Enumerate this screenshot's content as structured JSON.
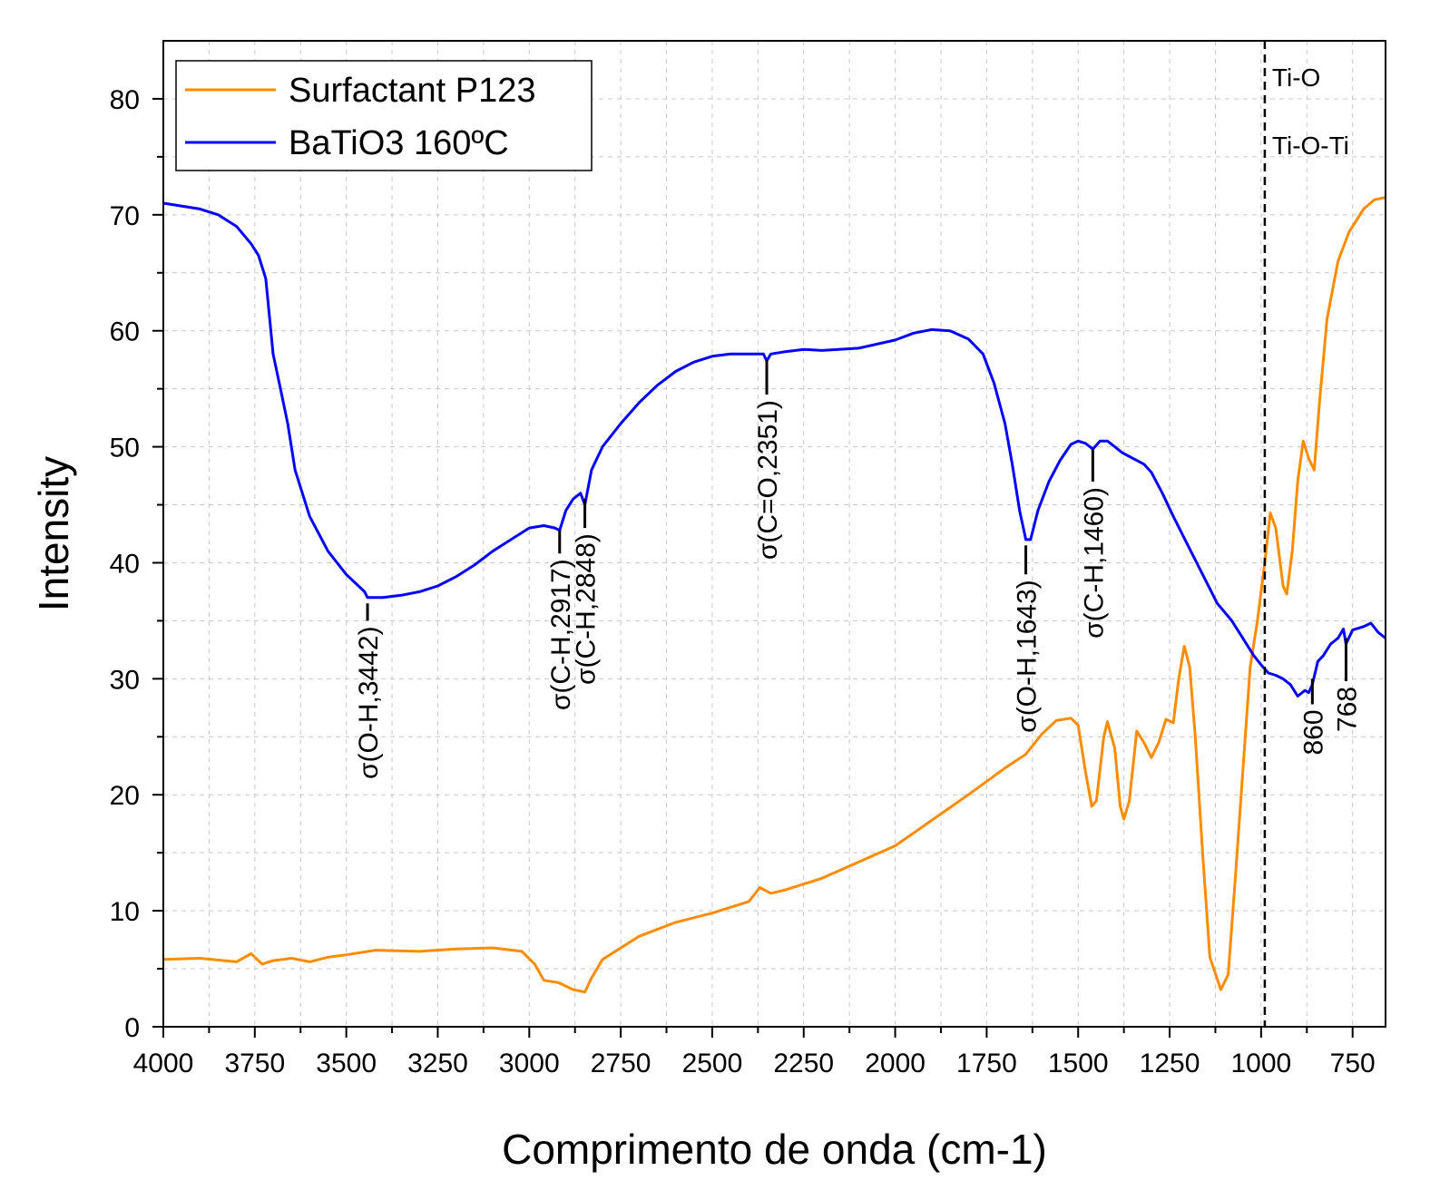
{
  "chart_data": {
    "type": "line",
    "title": "",
    "xlabel": "Comprimento de onda (cm-1)",
    "ylabel": "Intensity",
    "xlim": [
      4000,
      660
    ],
    "ylim": [
      0,
      85
    ],
    "xticks": [
      4000,
      3750,
      3500,
      3250,
      3000,
      2750,
      2500,
      2250,
      2000,
      1750,
      1500,
      1250,
      1000,
      750
    ],
    "xtick_labels": [
      "4000",
      "3750",
      "3500",
      "3250",
      "3000",
      "2750",
      "2500",
      "2250",
      "2000",
      "1750",
      "1500",
      "1250",
      "1000",
      "750"
    ],
    "yticks": [
      0,
      10,
      20,
      30,
      40,
      50,
      60,
      70,
      80
    ],
    "ytick_labels": [
      "0",
      "10",
      "20",
      "30",
      "40",
      "50",
      "60",
      "70",
      "80"
    ],
    "grid": true,
    "legend_position": "top-left",
    "series": [
      {
        "name": "Surfactant P123",
        "color": "#ff8c00",
        "points": [
          [
            4000,
            5.8
          ],
          [
            3900,
            5.9
          ],
          [
            3800,
            5.6
          ],
          [
            3760,
            6.3
          ],
          [
            3730,
            5.4
          ],
          [
            3700,
            5.7
          ],
          [
            3650,
            5.9
          ],
          [
            3600,
            5.6
          ],
          [
            3550,
            6.0
          ],
          [
            3500,
            6.2
          ],
          [
            3420,
            6.6
          ],
          [
            3300,
            6.5
          ],
          [
            3200,
            6.7
          ],
          [
            3100,
            6.8
          ],
          [
            3020,
            6.5
          ],
          [
            2985,
            5.4
          ],
          [
            2960,
            4.0
          ],
          [
            2920,
            3.8
          ],
          [
            2880,
            3.2
          ],
          [
            2848,
            3.0
          ],
          [
            2830,
            4.2
          ],
          [
            2800,
            5.8
          ],
          [
            2700,
            7.8
          ],
          [
            2600,
            9.0
          ],
          [
            2500,
            9.8
          ],
          [
            2400,
            10.8
          ],
          [
            2370,
            12.0
          ],
          [
            2340,
            11.5
          ],
          [
            2300,
            11.8
          ],
          [
            2200,
            12.8
          ],
          [
            2100,
            14.2
          ],
          [
            2000,
            15.6
          ],
          [
            1900,
            17.8
          ],
          [
            1800,
            20.0
          ],
          [
            1700,
            22.3
          ],
          [
            1643,
            23.5
          ],
          [
            1600,
            25.2
          ],
          [
            1560,
            26.4
          ],
          [
            1520,
            26.6
          ],
          [
            1500,
            26.0
          ],
          [
            1480,
            22.0
          ],
          [
            1463,
            19.0
          ],
          [
            1450,
            19.5
          ],
          [
            1430,
            25.0
          ],
          [
            1420,
            26.3
          ],
          [
            1400,
            24.0
          ],
          [
            1385,
            19.0
          ],
          [
            1375,
            17.9
          ],
          [
            1360,
            19.5
          ],
          [
            1340,
            25.5
          ],
          [
            1320,
            24.5
          ],
          [
            1300,
            23.2
          ],
          [
            1280,
            24.5
          ],
          [
            1260,
            26.5
          ],
          [
            1240,
            26.2
          ],
          [
            1225,
            30.0
          ],
          [
            1210,
            32.8
          ],
          [
            1195,
            31.0
          ],
          [
            1180,
            25.0
          ],
          [
            1160,
            15.0
          ],
          [
            1140,
            6.0
          ],
          [
            1110,
            3.2
          ],
          [
            1090,
            4.5
          ],
          [
            1070,
            13.0
          ],
          [
            1050,
            22.0
          ],
          [
            1030,
            31.0
          ],
          [
            1010,
            35.0
          ],
          [
            990,
            40.0
          ],
          [
            975,
            44.3
          ],
          [
            960,
            43.0
          ],
          [
            940,
            38.0
          ],
          [
            930,
            37.3
          ],
          [
            915,
            41.0
          ],
          [
            900,
            47.0
          ],
          [
            885,
            50.5
          ],
          [
            870,
            49.0
          ],
          [
            855,
            48.0
          ],
          [
            840,
            54.0
          ],
          [
            820,
            61.0
          ],
          [
            790,
            66.0
          ],
          [
            760,
            68.5
          ],
          [
            720,
            70.5
          ],
          [
            690,
            71.3
          ],
          [
            660,
            71.5
          ]
        ]
      },
      {
        "name": "BaTiO3 160ºC",
        "color": "#0000ff",
        "points": [
          [
            4000,
            71.0
          ],
          [
            3900,
            70.5
          ],
          [
            3850,
            70.0
          ],
          [
            3800,
            69.0
          ],
          [
            3760,
            67.5
          ],
          [
            3740,
            66.5
          ],
          [
            3720,
            64.5
          ],
          [
            3700,
            58.0
          ],
          [
            3680,
            55.0
          ],
          [
            3660,
            52.0
          ],
          [
            3640,
            48.0
          ],
          [
            3600,
            44.0
          ],
          [
            3550,
            41.0
          ],
          [
            3500,
            39.0
          ],
          [
            3450,
            37.5
          ],
          [
            3442,
            37.0
          ],
          [
            3400,
            37.0
          ],
          [
            3350,
            37.2
          ],
          [
            3300,
            37.5
          ],
          [
            3250,
            38.0
          ],
          [
            3200,
            38.8
          ],
          [
            3150,
            39.8
          ],
          [
            3100,
            41.0
          ],
          [
            3050,
            42.0
          ],
          [
            3000,
            43.0
          ],
          [
            2960,
            43.2
          ],
          [
            2930,
            43.0
          ],
          [
            2917,
            42.8
          ],
          [
            2900,
            44.5
          ],
          [
            2880,
            45.5
          ],
          [
            2860,
            46.0
          ],
          [
            2848,
            45.0
          ],
          [
            2830,
            48.0
          ],
          [
            2800,
            50.0
          ],
          [
            2750,
            52.0
          ],
          [
            2700,
            53.8
          ],
          [
            2650,
            55.3
          ],
          [
            2600,
            56.5
          ],
          [
            2550,
            57.3
          ],
          [
            2500,
            57.8
          ],
          [
            2450,
            58.0
          ],
          [
            2400,
            58.0
          ],
          [
            2360,
            58.0
          ],
          [
            2351,
            57.4
          ],
          [
            2340,
            58.0
          ],
          [
            2300,
            58.2
          ],
          [
            2250,
            58.4
          ],
          [
            2200,
            58.3
          ],
          [
            2100,
            58.5
          ],
          [
            2000,
            59.2
          ],
          [
            1950,
            59.8
          ],
          [
            1900,
            60.1
          ],
          [
            1850,
            60.0
          ],
          [
            1800,
            59.3
          ],
          [
            1760,
            58.0
          ],
          [
            1730,
            55.5
          ],
          [
            1700,
            52.0
          ],
          [
            1680,
            48.5
          ],
          [
            1660,
            44.5
          ],
          [
            1643,
            42.0
          ],
          [
            1630,
            42.0
          ],
          [
            1610,
            44.5
          ],
          [
            1580,
            47.0
          ],
          [
            1550,
            48.8
          ],
          [
            1520,
            50.2
          ],
          [
            1500,
            50.5
          ],
          [
            1480,
            50.3
          ],
          [
            1460,
            49.8
          ],
          [
            1440,
            50.5
          ],
          [
            1420,
            50.5
          ],
          [
            1400,
            50.0
          ],
          [
            1380,
            49.5
          ],
          [
            1350,
            49.0
          ],
          [
            1320,
            48.5
          ],
          [
            1300,
            47.8
          ],
          [
            1270,
            46.0
          ],
          [
            1240,
            44.0
          ],
          [
            1200,
            41.5
          ],
          [
            1160,
            39.0
          ],
          [
            1120,
            36.5
          ],
          [
            1080,
            35.0
          ],
          [
            1050,
            33.5
          ],
          [
            1020,
            32.0
          ],
          [
            1000,
            31.2
          ],
          [
            980,
            30.5
          ],
          [
            960,
            30.3
          ],
          [
            940,
            30.0
          ],
          [
            920,
            29.5
          ],
          [
            900,
            28.5
          ],
          [
            880,
            29.0
          ],
          [
            870,
            28.8
          ],
          [
            860,
            29.5
          ],
          [
            845,
            31.5
          ],
          [
            830,
            32.0
          ],
          [
            810,
            33.0
          ],
          [
            790,
            33.5
          ],
          [
            775,
            34.3
          ],
          [
            768,
            33.0
          ],
          [
            750,
            34.2
          ],
          [
            720,
            34.5
          ],
          [
            700,
            34.8
          ],
          [
            680,
            34.0
          ],
          [
            660,
            33.5
          ]
        ]
      }
    ],
    "annotations": [
      {
        "text": "σ(O-H,3442)",
        "x": 3442,
        "line_y": [
          36.5,
          35.0
        ]
      },
      {
        "text": "σ(C-H,2917)",
        "x": 2917,
        "line_y": [
          42.8,
          40.8
        ]
      },
      {
        "text": "σ(C-H,2848)",
        "x": 2848,
        "line_y": [
          45.5,
          43.0
        ]
      },
      {
        "text": "σ(C=O,2351)",
        "x": 2351,
        "line_y": [
          57.5,
          54.5
        ]
      },
      {
        "text": "σ(O-H,1643)",
        "x": 1643,
        "line_y": [
          41.5,
          39.0
        ]
      },
      {
        "text": "σ(C-H,1460)",
        "x": 1460,
        "line_y": [
          49.8,
          47.0
        ]
      },
      {
        "text": "860",
        "x": 860,
        "line_y": [
          30.0,
          27.8
        ]
      },
      {
        "text": "768",
        "x": 768,
        "line_y": [
          33.5,
          29.8
        ]
      }
    ],
    "reference_line": {
      "x": 990,
      "style": "dashed",
      "labels": [
        "Ti-O",
        "Ti-O-Ti"
      ]
    }
  }
}
